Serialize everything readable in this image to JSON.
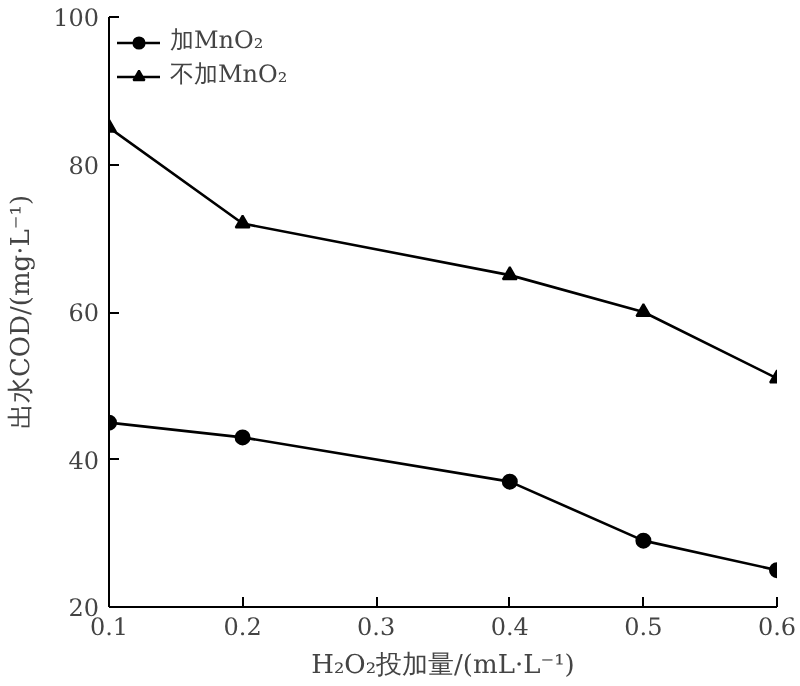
{
  "chart_data": {
    "type": "line",
    "xlabel": "H₂O₂投加量/(mL·L⁻¹)",
    "ylabel": "出水COD/(mg·L⁻¹)",
    "x": [
      0.1,
      0.2,
      0.4,
      0.5,
      0.6
    ],
    "series": [
      {
        "name": "加MnO₂",
        "color": "#000000",
        "marker": "circle",
        "values": [
          45,
          43,
          37,
          29,
          25
        ]
      },
      {
        "name": "不加MnO₂",
        "color": "#000000",
        "marker": "triangle",
        "values": [
          85,
          72,
          65,
          60,
          51
        ]
      }
    ],
    "xlim": [
      0.1,
      0.6
    ],
    "xticks": [
      0.1,
      0.2,
      0.3,
      0.4,
      0.5,
      0.6
    ],
    "ylim": [
      20,
      100
    ],
    "yticks": [
      20,
      40,
      60,
      80,
      100
    ],
    "grid": false,
    "legend": "top left",
    "line_style": "solid"
  }
}
